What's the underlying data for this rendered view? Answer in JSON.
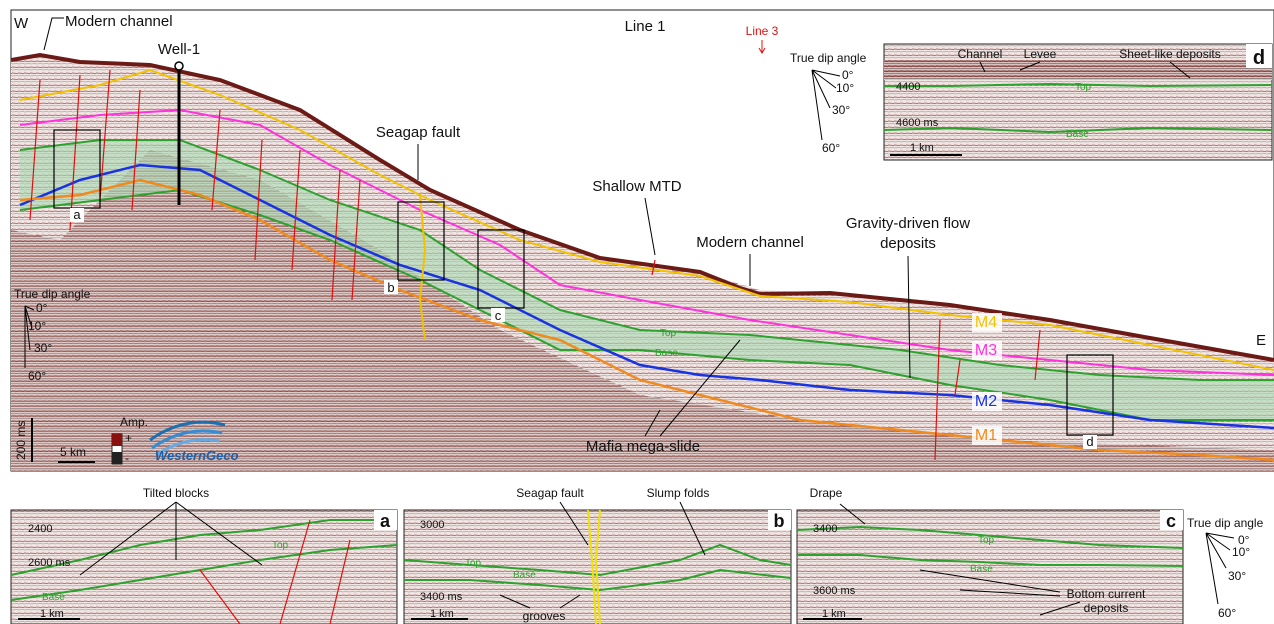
{
  "main_panel": {
    "title": "Line 1",
    "line3_marker": "Line 3",
    "west": "W",
    "east": "E",
    "well": "Well-1",
    "labels": {
      "modern_channel_left": "Modern channel",
      "seagap_fault": "Seagap fault",
      "shallow_mtd": "Shallow MTD",
      "modern_channel_right": "Modern channel",
      "gravity_flow_1": "Gravity-driven flow",
      "gravity_flow_2": "deposits",
      "mafia": "Mafia mega-slide",
      "top": "Top",
      "base": "Base"
    },
    "horizons": [
      {
        "name": "M4",
        "color": "#f2c200"
      },
      {
        "name": "M3",
        "color": "#ff33dd"
      },
      {
        "name": "M2",
        "color": "#1a33e0"
      },
      {
        "name": "M1",
        "color": "#f08a1e"
      }
    ],
    "boxes": [
      "a",
      "b",
      "c",
      "d"
    ],
    "dip_legend": {
      "title": "True dip angle",
      "angles": [
        "0°",
        "10°",
        "30°",
        "60°"
      ]
    },
    "scale": {
      "time": "200 ms",
      "distance": "5 km"
    },
    "amplitude": {
      "label": "Amp.",
      "plus": "+",
      "minus": "-"
    },
    "logo": "WesternGeco"
  },
  "inset_d": {
    "letter": "d",
    "labels": {
      "channel": "Channel",
      "levee": "Levee",
      "sheet": "Sheet-like deposits",
      "top": "Top",
      "base": "Base"
    },
    "depths": [
      "4400",
      "4600 ms"
    ],
    "scale": "1 km",
    "dip_legend": {
      "title": "True dip angle",
      "angles": [
        "0°",
        "10°",
        "30°",
        "60°"
      ]
    }
  },
  "panel_a": {
    "letter": "a",
    "title": "Tilted blocks",
    "depths": [
      "2400",
      "2600 ms"
    ],
    "top": "Top",
    "base": "Base",
    "scale": "1 km"
  },
  "panel_b": {
    "letter": "b",
    "labels": {
      "fault": "Seagap fault",
      "slump": "Slump folds",
      "grooves": "grooves",
      "top": "Top",
      "base": "Base"
    },
    "depths": [
      "3000",
      "3400 ms"
    ],
    "scale": "1 km"
  },
  "panel_c": {
    "letter": "c",
    "labels": {
      "drape": "Drape",
      "bottom1": "Bottom current",
      "bottom2": "deposits",
      "top": "Top",
      "base": "Base"
    },
    "depths": [
      "3400",
      "3600 ms"
    ],
    "scale": "1 km",
    "dip_legend": {
      "title": "True dip angle",
      "angles": [
        "0°",
        "10°",
        "30°",
        "60°"
      ]
    }
  }
}
